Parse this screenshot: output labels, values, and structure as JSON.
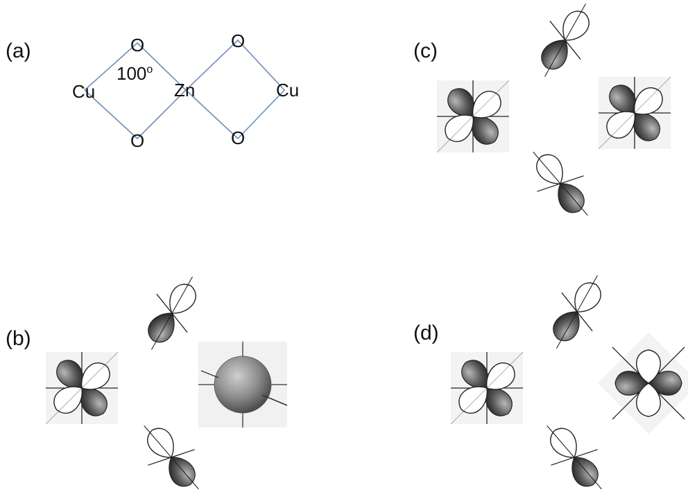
{
  "panels": {
    "a": {
      "label": "(a)"
    },
    "b": {
      "label": "(b)"
    },
    "c": {
      "label": "(c)"
    },
    "d": {
      "label": "(d)"
    }
  },
  "structure": {
    "atoms": {
      "cu_left": "Cu",
      "zn": "Zn",
      "cu_right": "Cu",
      "o_top_left": "O",
      "o_bottom_left": "O",
      "o_top_right": "O",
      "o_bottom_right": "O"
    },
    "bond_angle": "100",
    "bond_angle_unit": "o",
    "bond_color": "#6b8fb8"
  },
  "orbital_colors": {
    "filled_lobe": "#3a3a3a",
    "empty_lobe": "#ffffff",
    "outline": "#222222",
    "sphere": "#8a8a8a"
  }
}
